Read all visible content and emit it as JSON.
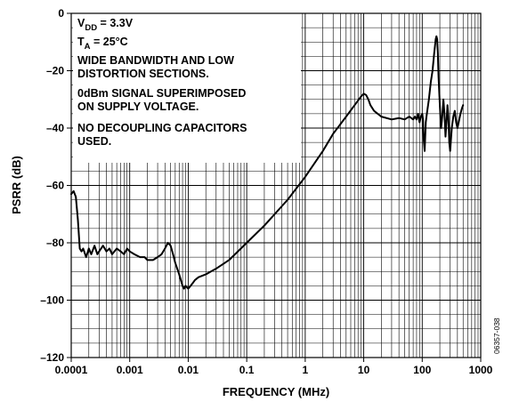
{
  "chart_data": {
    "type": "line",
    "title": "",
    "xlabel": "FREQUENCY (MHz)",
    "ylabel": "PSRR (dB)",
    "x_scale": "log",
    "xlim": [
      0.0001,
      1000
    ],
    "ylim": [
      -120,
      0
    ],
    "x_ticks": [
      {
        "value": 0.0001,
        "label": "0.0001"
      },
      {
        "value": 0.001,
        "label": "0.001"
      },
      {
        "value": 0.01,
        "label": "0.01"
      },
      {
        "value": 0.1,
        "label": "0.1"
      },
      {
        "value": 1,
        "label": "1"
      },
      {
        "value": 10,
        "label": "10"
      },
      {
        "value": 100,
        "label": "100"
      },
      {
        "value": 1000,
        "label": "1000"
      }
    ],
    "y_ticks": [
      {
        "value": 0,
        "label": "0"
      },
      {
        "value": -20,
        "label": "–20"
      },
      {
        "value": -40,
        "label": "–40"
      },
      {
        "value": -60,
        "label": "–60"
      },
      {
        "value": -80,
        "label": "–80"
      },
      {
        "value": -100,
        "label": "–100"
      },
      {
        "value": -120,
        "label": "–120"
      }
    ],
    "grid": true,
    "annotations": {
      "vdd_sym": "V",
      "vdd_sub": "DD",
      "vdd_val": " = 3.3V",
      "ta_sym": "T",
      "ta_sub": "A",
      "ta_val": " = 25°C",
      "line3": "WIDE BANDWIDTH AND LOW",
      "line4": "DISTORTION SECTIONS.",
      "line5": "0dBm SIGNAL SUPERIMPOSED",
      "line6": "ON SUPPLY VOLTAGE.",
      "line7": "NO DECOUPLING CAPACITORS",
      "line8": "USED."
    },
    "figure_id": "06357-038",
    "series": [
      {
        "x": [
          0.0001,
          0.00011,
          0.00012,
          0.00013,
          0.00014,
          0.00015,
          0.00016,
          0.00018,
          0.0002,
          0.00022,
          0.00025,
          0.00028,
          0.0003,
          0.00035,
          0.0004,
          0.00045,
          0.0005,
          0.0006,
          0.0007,
          0.0008,
          0.0009,
          0.001,
          0.0012,
          0.0015,
          0.0018,
          0.002,
          0.0025,
          0.003,
          0.0035,
          0.004,
          0.0045,
          0.005,
          0.0055,
          0.006,
          0.007,
          0.008,
          0.0085,
          0.009,
          0.01,
          0.011,
          0.012,
          0.013,
          0.015,
          0.02,
          0.03,
          0.05,
          0.1,
          0.2,
          0.5,
          1,
          2,
          3,
          5,
          7,
          9,
          10,
          11,
          12,
          13,
          15,
          20,
          30,
          40,
          50,
          60,
          70,
          75,
          80,
          85,
          90,
          95,
          100,
          103,
          106,
          110,
          115,
          120,
          130,
          140,
          150,
          160,
          170,
          175,
          180,
          185,
          190,
          200,
          210,
          220,
          230,
          240,
          250,
          260,
          270,
          280,
          290,
          300,
          320,
          340,
          360,
          380,
          400,
          420,
          450,
          480,
          500
        ],
        "y": [
          -63,
          -62,
          -64,
          -72,
          -82,
          -83,
          -82,
          -85,
          -82,
          -84,
          -81,
          -84,
          -83,
          -81,
          -83,
          -82,
          -84,
          -82,
          -83,
          -84,
          -82,
          -83,
          -84,
          -85,
          -85,
          -86,
          -86,
          -85,
          -84,
          -82,
          -80,
          -81,
          -84,
          -87,
          -91,
          -95,
          -96,
          -95,
          -96,
          -95,
          -94,
          -93,
          -92,
          -91,
          -89,
          -86,
          -80,
          -74,
          -65,
          -57,
          -48,
          -42,
          -36,
          -32,
          -29,
          -28,
          -28.5,
          -30,
          -32,
          -34,
          -36,
          -37,
          -36.5,
          -37,
          -36,
          -37,
          -36,
          -37,
          -35,
          -38,
          -36,
          -35,
          -37,
          -44,
          -48,
          -38,
          -35,
          -30,
          -24,
          -20,
          -14,
          -9,
          -8,
          -9,
          -14,
          -22,
          -32,
          -40,
          -36,
          -30,
          -35,
          -43,
          -38,
          -32,
          -36,
          -45,
          -48,
          -40,
          -36,
          -34,
          -38,
          -40,
          -38,
          -35,
          -33,
          -32
        ]
      }
    ]
  }
}
